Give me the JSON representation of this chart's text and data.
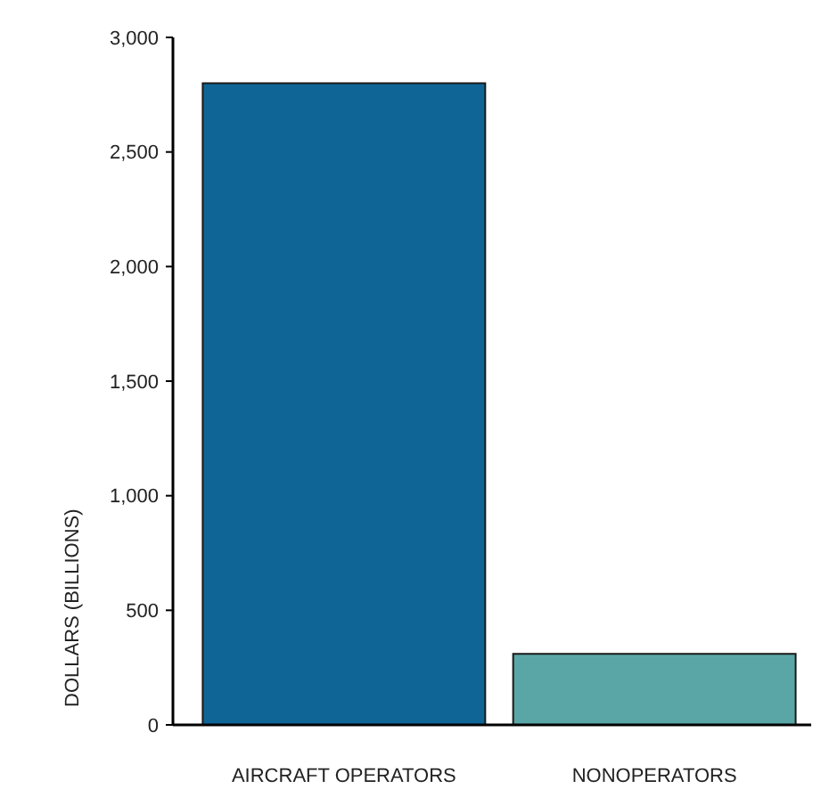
{
  "chart_data": {
    "type": "bar",
    "ylabel": "DOLLARS (BILLIONS)",
    "categories": [
      "AIRCRAFT OPERATORS",
      "NONOPERATORS"
    ],
    "values": [
      2800,
      310
    ],
    "colors": [
      "#0f6696",
      "#5aa6a6"
    ],
    "ylim": [
      0,
      3000
    ],
    "yticks": [
      {
        "value": 0,
        "label": "0"
      },
      {
        "value": 500,
        "label": "500"
      },
      {
        "value": 1000,
        "label": "1,000"
      },
      {
        "value": 1500,
        "label": "1,500"
      },
      {
        "value": 2000,
        "label": "2,000"
      },
      {
        "value": 2500,
        "label": "2,500"
      },
      {
        "value": 3000,
        "label": "3,000"
      }
    ],
    "grid": false
  }
}
